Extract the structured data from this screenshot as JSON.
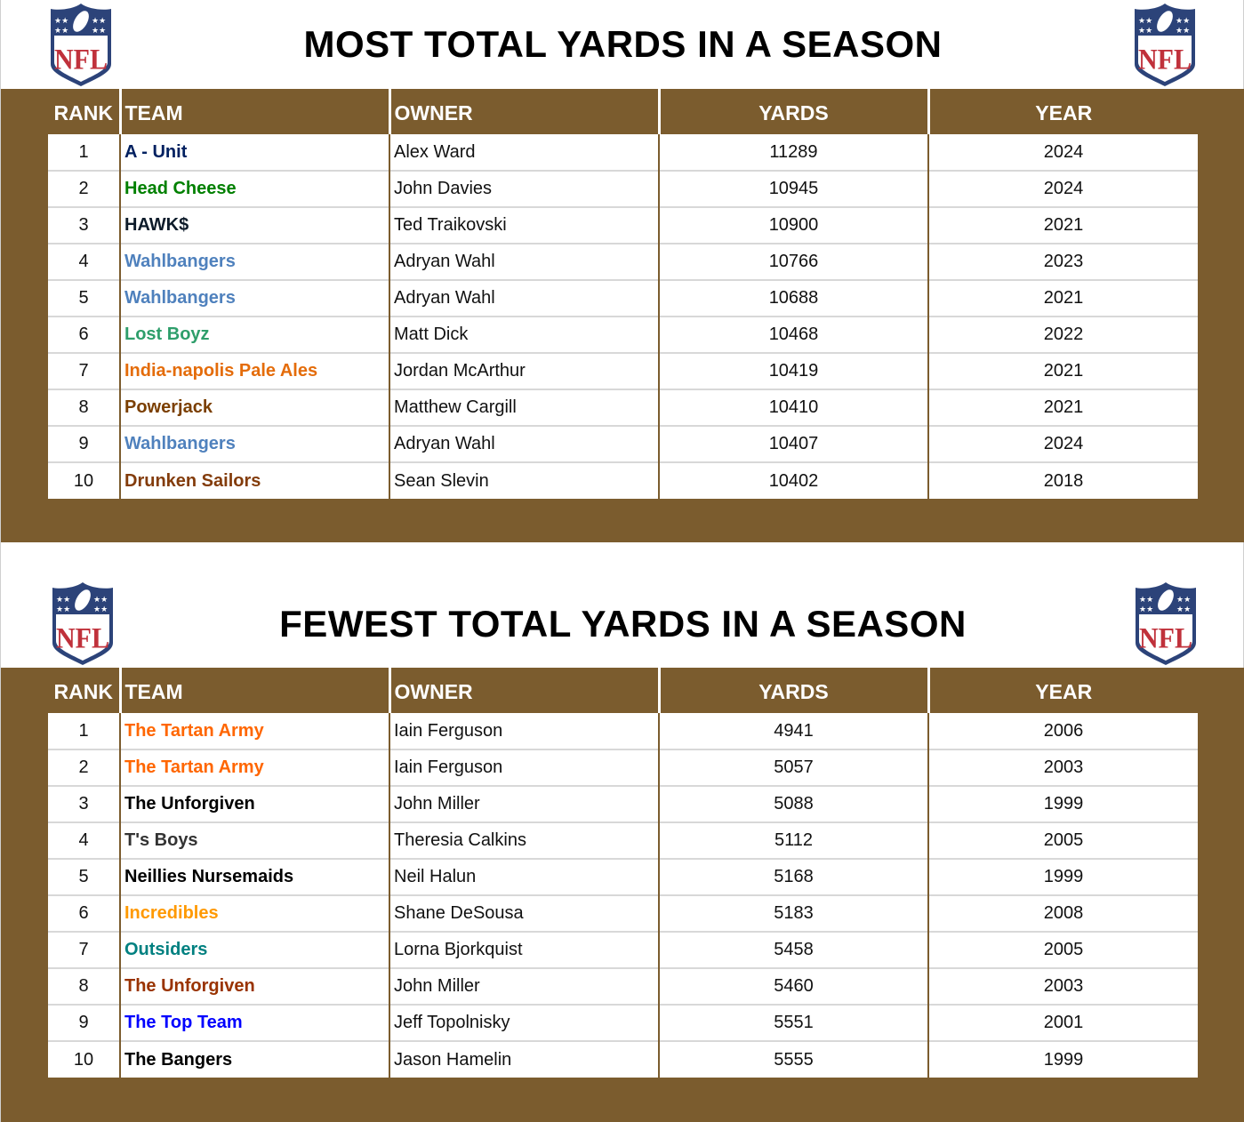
{
  "colors": {
    "band": "#7B5C2E",
    "header_text": "#ffffff"
  },
  "logo_icon": "nfl-shield-logo",
  "tables": [
    {
      "title": "MOST TOTAL YARDS IN A SEASON",
      "columns": [
        "RANK",
        "TEAM",
        "OWNER",
        "YARDS",
        "YEAR"
      ],
      "rows": [
        {
          "rank": "1",
          "team": "A - Unit",
          "team_color": "#002060",
          "owner": "Alex Ward",
          "yards": "11289",
          "year": "2024"
        },
        {
          "rank": "2",
          "team": "Head Cheese",
          "team_color": "#008000",
          "owner": "John Davies",
          "yards": "10945",
          "year": "2024"
        },
        {
          "rank": "3",
          "team": "HAWK$",
          "team_color": "#0D1B2A",
          "owner": "Ted Traikovski",
          "yards": "10900",
          "year": "2021"
        },
        {
          "rank": "4",
          "team": "Wahlbangers",
          "team_color": "#4F81BD",
          "owner": "Adryan Wahl",
          "yards": "10766",
          "year": "2023"
        },
        {
          "rank": "5",
          "team": "Wahlbangers",
          "team_color": "#4F81BD",
          "owner": "Adryan Wahl",
          "yards": "10688",
          "year": "2021"
        },
        {
          "rank": "6",
          "team": "Lost Boyz",
          "team_color": "#2E9E6B",
          "owner": "Matt Dick",
          "yards": "10468",
          "year": "2022"
        },
        {
          "rank": "7",
          "team": "India-napolis Pale Ales",
          "team_color": "#E46C0A",
          "owner": "Jordan McArthur",
          "yards": "10419",
          "year": "2021"
        },
        {
          "rank": "8",
          "team": "Powerjack",
          "team_color": "#7B3F00",
          "owner": "Matthew Cargill",
          "yards": "10410",
          "year": "2021"
        },
        {
          "rank": "9",
          "team": "Wahlbangers",
          "team_color": "#4F81BD",
          "owner": "Adryan Wahl",
          "yards": "10407",
          "year": "2024"
        },
        {
          "rank": "10",
          "team": "Drunken Sailors",
          "team_color": "#833C0B",
          "owner": "Sean Slevin",
          "yards": "10402",
          "year": "2018"
        }
      ]
    },
    {
      "title": "FEWEST TOTAL YARDS IN A SEASON",
      "columns": [
        "RANK",
        "TEAM",
        "OWNER",
        "YARDS",
        "YEAR"
      ],
      "rows": [
        {
          "rank": "1",
          "team": "The Tartan Army",
          "team_color": "#FF6600",
          "owner": "Iain Ferguson",
          "yards": "4941",
          "year": "2006"
        },
        {
          "rank": "2",
          "team": "The Tartan Army",
          "team_color": "#FF6600",
          "owner": "Iain Ferguson",
          "yards": "5057",
          "year": "2003"
        },
        {
          "rank": "3",
          "team": "The Unforgiven",
          "team_color": "#000000",
          "owner": "John Miller",
          "yards": "5088",
          "year": "1999"
        },
        {
          "rank": "4",
          "team": "T's Boys",
          "team_color": "#333333",
          "owner": "Theresia Calkins",
          "yards": "5112",
          "year": "2005"
        },
        {
          "rank": "5",
          "team": "Neillies Nursemaids",
          "team_color": "#000000",
          "owner": "Neil Halun",
          "yards": "5168",
          "year": "1999"
        },
        {
          "rank": "6",
          "team": "Incredibles",
          "team_color": "#FF9900",
          "owner": "Shane DeSousa",
          "yards": "5183",
          "year": "2008"
        },
        {
          "rank": "7",
          "team": "Outsiders",
          "team_color": "#008080",
          "owner": "Lorna Bjorkquist",
          "yards": "5458",
          "year": "2005"
        },
        {
          "rank": "8",
          "team": "The Unforgiven",
          "team_color": "#993300",
          "owner": "John Miller",
          "yards": "5460",
          "year": "2003"
        },
        {
          "rank": "9",
          "team": "The Top Team",
          "team_color": "#0000FF",
          "owner": "Jeff Topolnisky",
          "yards": "5551",
          "year": "2001"
        },
        {
          "rank": "10",
          "team": "The Bangers",
          "team_color": "#000000",
          "owner": "Jason Hamelin",
          "yards": "5555",
          "year": "1999"
        }
      ]
    }
  ]
}
